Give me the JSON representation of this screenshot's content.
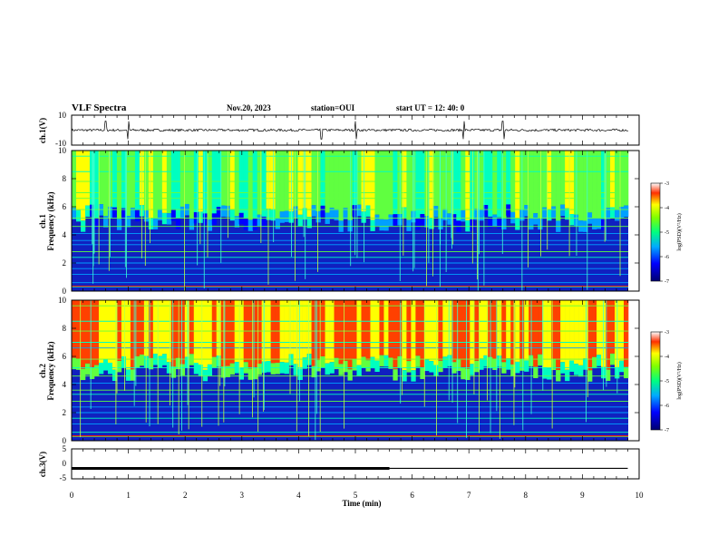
{
  "header": {
    "title": "VLF Spectra",
    "date": "Nov.20, 2023",
    "station": "station=OUI",
    "start": "start  UT  =   12: 40: 0"
  },
  "chart_data": [
    {
      "type": "line",
      "title": "",
      "ylabel": "ch.1(V)",
      "ylim": [
        -10,
        10
      ],
      "yticks": [
        "10",
        "-10"
      ],
      "xlim": [
        0,
        10
      ],
      "series": [
        {
          "values": [
            0,
            0,
            0,
            0,
            0,
            0,
            0,
            0,
            0,
            0,
            0
          ]
        }
      ],
      "note": "noisy waveform near 0 V with spikes near 0.6, 1.0, 4.4, 5.0, 6.9, 7.6 min"
    },
    {
      "type": "heatmap",
      "ylabel_top": "ch.1",
      "ylabel": "Frequency  (kHz)",
      "ylim": [
        0,
        10
      ],
      "yticks": [
        "0",
        "2",
        "4",
        "6",
        "8",
        "10"
      ],
      "xlim": [
        0,
        10
      ],
      "colorbar": {
        "label": "log(PSD)(V²/Hz)",
        "range": [
          -7,
          -3
        ],
        "ticks": [
          "-3",
          "-4",
          "-5",
          "-6",
          "-7"
        ]
      },
      "colors": [
        "#00007a",
        "#0000ff",
        "#00a0ff",
        "#00ffc0",
        "#60ff40",
        "#ffff00",
        "#ff4000",
        "#ff0000"
      ]
    },
    {
      "type": "heatmap",
      "ylabel_top": "ch.2",
      "ylabel": "Frequency  (kHz)",
      "ylim": [
        0,
        10
      ],
      "yticks": [
        "0",
        "2",
        "4",
        "6",
        "8",
        "10"
      ],
      "xlim": [
        0,
        10
      ],
      "colorbar": {
        "label": "log(PSD)(V²/Hz)",
        "range": [
          -7,
          -3
        ],
        "ticks": [
          "-3",
          "-4",
          "-5",
          "-6",
          "-7"
        ]
      }
    },
    {
      "type": "line",
      "ylabel": "ch.3(V)",
      "ylim": [
        -5,
        5
      ],
      "yticks": [
        "5",
        "0",
        "-5"
      ],
      "xlim": [
        0,
        10
      ],
      "series": [
        {
          "x": [
            0,
            5.6,
            5.6,
            9.8
          ],
          "values": [
            -1.5,
            -1.5,
            -1.5,
            -1.5
          ]
        }
      ],
      "xlabel": "Time  (min)",
      "xticks": [
        "0",
        "1",
        "2",
        "3",
        "4",
        "5",
        "6",
        "7",
        "8",
        "9",
        "10"
      ]
    }
  ]
}
